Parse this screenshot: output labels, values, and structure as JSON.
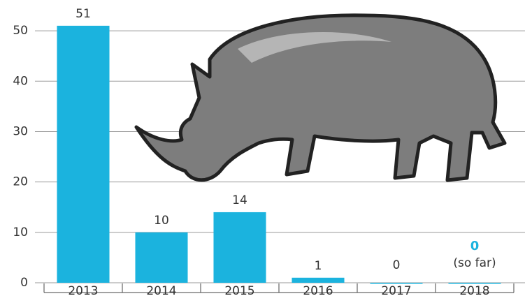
{
  "chart_data": {
    "type": "bar",
    "categories": [
      "2013",
      "2014",
      "2015",
      "2016",
      "2017",
      "2018"
    ],
    "values": [
      51,
      10,
      14,
      1,
      0,
      0
    ],
    "color": "#1bb3de",
    "value_label_colors": [
      "#333333",
      "#333333",
      "#333333",
      "#333333",
      "#333333",
      "#1bb3de"
    ],
    "annotation": "(so far)",
    "ylim": [
      0,
      55
    ],
    "yticks": [
      0,
      10,
      20,
      30,
      40,
      50
    ],
    "grid": true
  }
}
